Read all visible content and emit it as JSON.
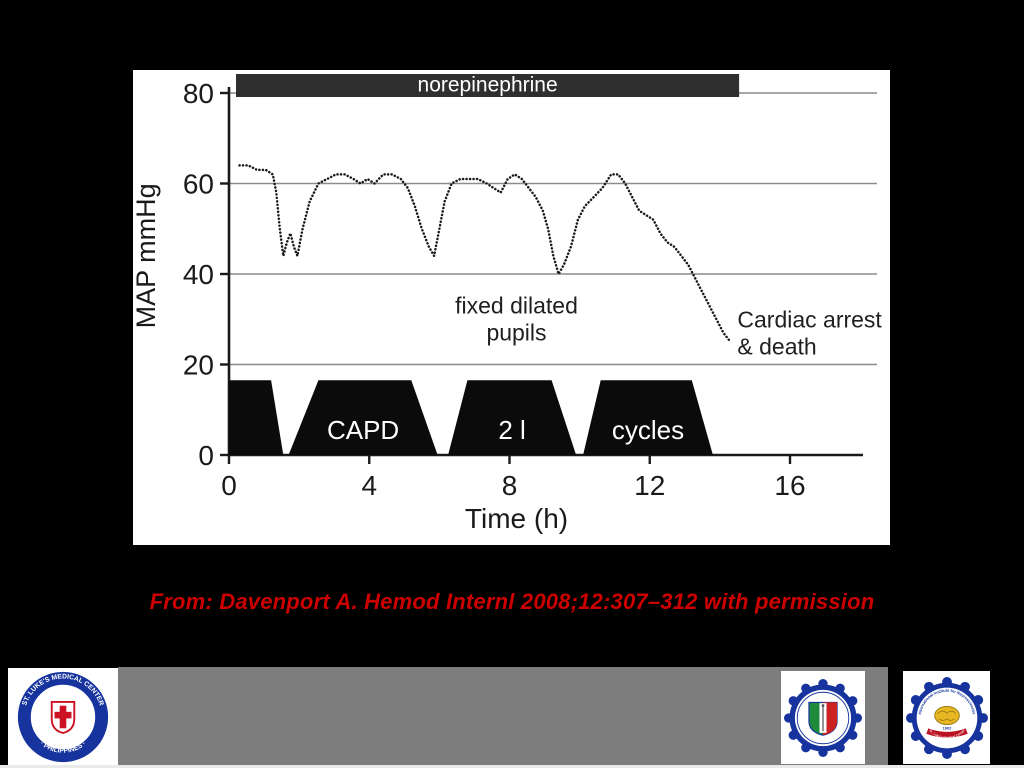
{
  "slide": {
    "background": "#000000",
    "caption": {
      "text": "From: Davenport A. Hemod Internl 2008;12:307–312 with permission",
      "color": "#cc0000"
    }
  },
  "chart_data": {
    "type": "line",
    "title": "",
    "xlabel": "Time (h)",
    "ylabel": "MAP mmHg",
    "xlim": [
      0,
      16
    ],
    "ylim": [
      0,
      80
    ],
    "xticks": [
      0,
      4,
      8,
      12,
      16
    ],
    "yticks": [
      0,
      20,
      40,
      60,
      80
    ],
    "grid_y": [
      20,
      40,
      60,
      80
    ],
    "grid": "horizontal-only",
    "legend": "none",
    "line_style": "dotted",
    "line_color": "#1a1a1a",
    "top_band": {
      "label": "norepinephrine",
      "x_range": [
        0.2,
        14.55
      ],
      "fill": "#2f2f2f",
      "text_color": "#ffffff"
    },
    "series": [
      {
        "name": "MAP",
        "x": [
          0.3,
          0.55,
          0.8,
          1.05,
          1.25,
          1.35,
          1.45,
          1.55,
          1.65,
          1.75,
          1.85,
          1.95,
          2.1,
          2.3,
          2.55,
          2.8,
          3.05,
          3.3,
          3.55,
          3.75,
          3.95,
          4.15,
          4.4,
          4.65,
          4.9,
          5.1,
          5.3,
          5.5,
          5.7,
          5.85,
          6.0,
          6.15,
          6.35,
          6.6,
          6.85,
          7.1,
          7.35,
          7.55,
          7.75,
          7.95,
          8.15,
          8.35,
          8.55,
          8.75,
          8.95,
          9.1,
          9.25,
          9.4,
          9.55,
          9.75,
          9.95,
          10.15,
          10.4,
          10.65,
          10.9,
          11.1,
          11.3,
          11.5,
          11.7,
          11.9,
          12.1,
          12.3,
          12.5,
          12.7,
          12.9,
          13.1,
          13.3,
          13.5,
          13.7,
          13.9,
          14.1,
          14.3
        ],
        "y": [
          64,
          64,
          63,
          63,
          62,
          58,
          50,
          44,
          47,
          49,
          46,
          44,
          50,
          56,
          60,
          61,
          62,
          62,
          61,
          60,
          61,
          60,
          62,
          62,
          61,
          59,
          55,
          50,
          46,
          44,
          50,
          56,
          60,
          61,
          61,
          61,
          60,
          59,
          58,
          61,
          62,
          61,
          59,
          57,
          54,
          50,
          44,
          40,
          42,
          46,
          52,
          55,
          57,
          59,
          62,
          62,
          60,
          57,
          54,
          53,
          52,
          49,
          47,
          46,
          44,
          42,
          39,
          36,
          33,
          30,
          27,
          25
        ]
      }
    ],
    "annotations": [
      {
        "lines": [
          "fixed dilated",
          "pupils"
        ],
        "x": 8.2,
        "y": 33,
        "anchor": "middle"
      },
      {
        "lines": [
          "Cardiac arrest",
          "& death"
        ],
        "x": 14.5,
        "y": 30,
        "anchor": "start"
      }
    ],
    "bottom_shapes": {
      "height": 16.5,
      "fill": "#0b0b0b",
      "label_color": "#ffffff",
      "shapes": [
        {
          "bottom": [
            0.0,
            1.55
          ],
          "top": [
            0.0,
            1.2
          ],
          "label": ""
        },
        {
          "bottom": [
            1.7,
            5.95
          ],
          "top": [
            2.55,
            5.2
          ],
          "label": "CAPD"
        },
        {
          "bottom": [
            6.25,
            9.9
          ],
          "top": [
            6.8,
            9.2
          ],
          "label": "2 l"
        },
        {
          "bottom": [
            10.1,
            13.8
          ],
          "top": [
            10.6,
            13.2
          ],
          "label": "cycles"
        }
      ]
    }
  },
  "footer": {
    "bar_color": "#7d7d7d",
    "logos": [
      {
        "name": "st-lukes-medical-center",
        "ring_top": "ST. LUKE'S MEDICAL CENTER",
        "ring_bottom": "· PHILIPPINES ·"
      },
      {
        "name": "st-lukes-college-emblem"
      },
      {
        "name": "international-institute-for-neurosciences",
        "ring_top": "International Institute for Neurosciences",
        "ring_bottom": "St. Luke's Medical Center",
        "year": "1902"
      }
    ]
  }
}
